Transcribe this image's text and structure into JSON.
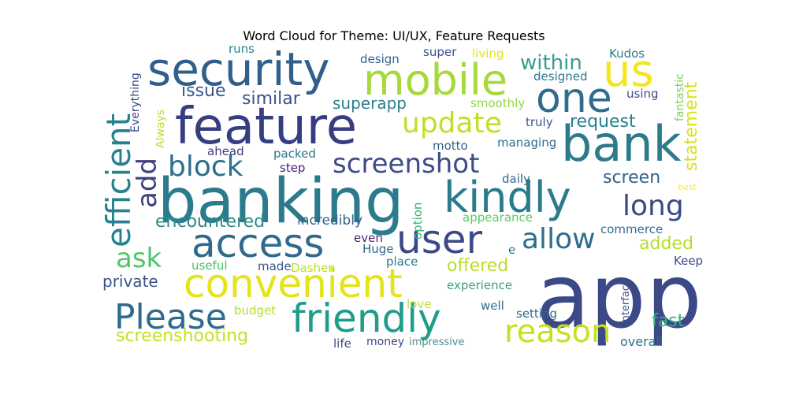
{
  "title": "Word Cloud for Theme: UI/UX, Feature Requests",
  "words": [
    {
      "text": "app",
      "color": "#3b4a86"
    },
    {
      "text": "banking",
      "color": "#2b7b8c"
    },
    {
      "text": "feature",
      "color": "#353e80"
    },
    {
      "text": "security",
      "color": "#2f5f8a"
    },
    {
      "text": "bank",
      "color": "#2c7b8b"
    },
    {
      "text": "mobile",
      "color": "#a6d93a"
    },
    {
      "text": "us",
      "color": "#f3e51e"
    },
    {
      "text": "one",
      "color": "#2f6d8e"
    },
    {
      "text": "kindly",
      "color": "#2b7b8c"
    },
    {
      "text": "user",
      "color": "#3c4987"
    },
    {
      "text": "access",
      "color": "#2e6a8c"
    },
    {
      "text": "convenient",
      "color": "#e3e419"
    },
    {
      "text": "friendly",
      "color": "#1f9d8a"
    },
    {
      "text": "Please",
      "color": "#2e6b8e"
    },
    {
      "text": "reason",
      "color": "#c8e020"
    },
    {
      "text": "efficient",
      "color": "#26828e"
    },
    {
      "text": "update",
      "color": "#c3de28"
    },
    {
      "text": "screenshot",
      "color": "#3d4b89"
    },
    {
      "text": "block",
      "color": "#2c6e8e"
    },
    {
      "text": "allow",
      "color": "#2f6c8d"
    },
    {
      "text": "long",
      "color": "#3a4a86"
    },
    {
      "text": "add",
      "color": "#3f3e7f"
    },
    {
      "text": "ask",
      "color": "#52c569"
    },
    {
      "text": "within",
      "color": "#3b9b8d"
    },
    {
      "text": "encountered",
      "color": "#2b8a88"
    },
    {
      "text": "issue",
      "color": "#36588c"
    },
    {
      "text": "similar",
      "color": "#3d4e8a"
    },
    {
      "text": "superapp",
      "color": "#2c7f8d"
    },
    {
      "text": "request",
      "color": "#25818e"
    },
    {
      "text": "statement",
      "color": "#d8e21c"
    },
    {
      "text": "screen",
      "color": "#34618d"
    },
    {
      "text": "offered",
      "color": "#b9de29"
    },
    {
      "text": "added",
      "color": "#b5de2b"
    },
    {
      "text": "fast",
      "color": "#2fb47c"
    },
    {
      "text": "screenshooting",
      "color": "#c6e021"
    },
    {
      "text": "private",
      "color": "#3b528b"
    },
    {
      "text": "incredibly",
      "color": "#35608d"
    },
    {
      "text": "experience",
      "color": "#3e9b89"
    },
    {
      "text": "setting",
      "color": "#2f6c8d"
    },
    {
      "text": "overall",
      "color": "#2d708e"
    },
    {
      "text": "design",
      "color": "#33638d"
    },
    {
      "text": "super",
      "color": "#3b528b"
    },
    {
      "text": "living",
      "color": "#e5e419"
    },
    {
      "text": "Kudos",
      "color": "#2b7b8c"
    },
    {
      "text": "runs",
      "color": "#25848e"
    },
    {
      "text": "designed",
      "color": "#2a788e"
    },
    {
      "text": "smoothly",
      "color": "#8fd744"
    },
    {
      "text": "using",
      "color": "#3e4c8a"
    },
    {
      "text": "truly",
      "color": "#36598c"
    },
    {
      "text": "managing",
      "color": "#2d708e"
    },
    {
      "text": "motto",
      "color": "#30648d"
    },
    {
      "text": "packed",
      "color": "#2a768e"
    },
    {
      "text": "ahead",
      "color": "#453781"
    },
    {
      "text": "step",
      "color": "#482173"
    },
    {
      "text": "daily",
      "color": "#2f6b8e"
    },
    {
      "text": "option",
      "color": "#34b679"
    },
    {
      "text": "appearance",
      "color": "#5ec962"
    },
    {
      "text": "commerce",
      "color": "#2f6c8e"
    },
    {
      "text": "useful",
      "color": "#4ac16d"
    },
    {
      "text": "made",
      "color": "#39568c"
    },
    {
      "text": "Dashen",
      "color": "#bddf26"
    },
    {
      "text": "place",
      "color": "#2a788e"
    },
    {
      "text": "even",
      "color": "#482475"
    },
    {
      "text": "Huge",
      "color": "#31688e"
    },
    {
      "text": "e",
      "color": "#2c728e"
    },
    {
      "text": "Keep",
      "color": "#3e4989"
    },
    {
      "text": "budget",
      "color": "#b5de2b"
    },
    {
      "text": "love",
      "color": "#bddf26"
    },
    {
      "text": "well",
      "color": "#2f6c8e"
    },
    {
      "text": "life",
      "color": "#3f4889"
    },
    {
      "text": "money",
      "color": "#3f4788"
    },
    {
      "text": "impressive",
      "color": "#4e8c8c"
    },
    {
      "text": "interface",
      "color": "#3e4c8a"
    },
    {
      "text": "best",
      "color": "#fde725"
    },
    {
      "text": "fantastic",
      "color": "#7ad151"
    },
    {
      "text": "Everything",
      "color": "#3b4a86"
    },
    {
      "text": "Always",
      "color": "#b8de29"
    }
  ]
}
